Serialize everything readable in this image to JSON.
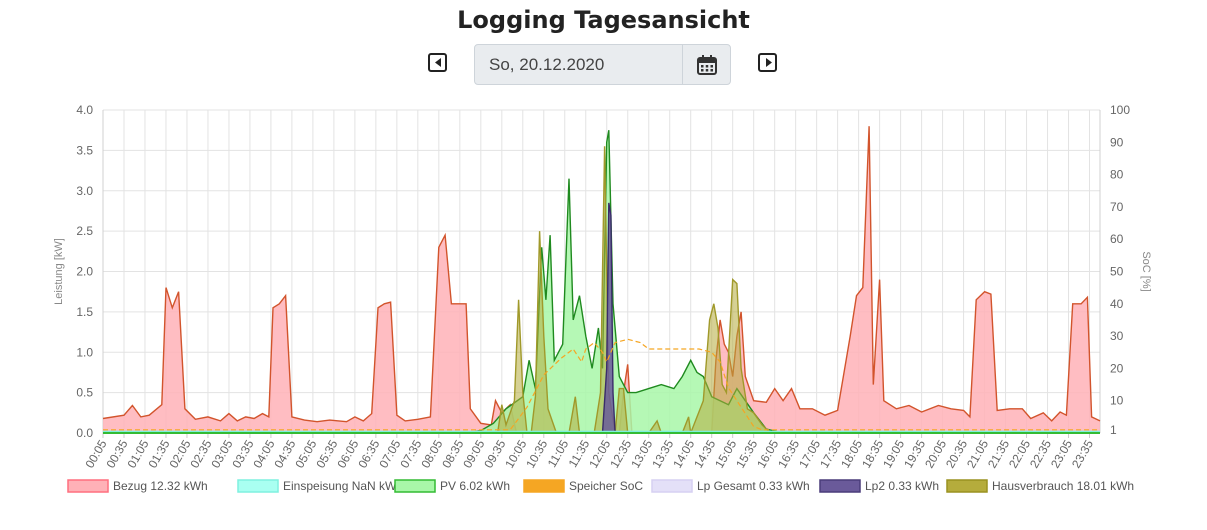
{
  "page": {
    "title": "Logging Tagesansicht",
    "date_value": "So, 20.12.2020"
  },
  "icons": {
    "prev": "caret-left-square-icon",
    "next": "caret-right-square-icon",
    "calendar": "calendar-icon"
  },
  "chart_data": {
    "type": "area",
    "x_ticks": [
      "00:05",
      "00:35",
      "01:05",
      "01:35",
      "02:05",
      "02:35",
      "03:05",
      "03:35",
      "04:05",
      "04:35",
      "05:05",
      "05:35",
      "06:05",
      "06:35",
      "07:05",
      "07:35",
      "08:05",
      "08:35",
      "09:05",
      "09:35",
      "10:05",
      "10:35",
      "11:05",
      "11:35",
      "12:05",
      "12:35",
      "13:05",
      "13:35",
      "14:05",
      "14:35",
      "15:05",
      "15:35",
      "16:05",
      "16:35",
      "17:05",
      "17:35",
      "18:05",
      "18:35",
      "19:05",
      "19:35",
      "20:05",
      "20:35",
      "21:05",
      "21:35",
      "22:05",
      "22:35",
      "23:05",
      "23:35"
    ],
    "y_left": {
      "label": "Leistung [kW]",
      "min": 0,
      "max": 4.0,
      "ticks": [
        "0.0",
        "0.5",
        "1.0",
        "1.5",
        "2.0",
        "2.5",
        "3.0",
        "3.5",
        "4.0"
      ]
    },
    "y_right": {
      "label": "SoC [%]",
      "min": 0,
      "max": 100,
      "ticks": [
        "1",
        "10",
        "20",
        "30",
        "40",
        "50",
        "60",
        "70",
        "80",
        "90",
        "100"
      ]
    },
    "grid": true,
    "legend_position": "bottom",
    "legend": [
      {
        "label": "Bezug 12.32 kWh",
        "fill": "#ffb1b7",
        "stroke": "#ff6f7f"
      },
      {
        "label": "Einspeisung NaN kWh",
        "fill": "#a9fff1",
        "stroke": "#7ff0df"
      },
      {
        "label": "PV 6.02 kWh",
        "fill": "#a8f7a8",
        "stroke": "#33bb33"
      },
      {
        "label": "Speicher SoC",
        "fill": "#f5a623",
        "stroke": "#f5a623"
      },
      {
        "label": "Lp Gesamt 0.33 kWh",
        "fill": "#e4e0f8",
        "stroke": "#d6d0f2"
      },
      {
        "label": "Lp2 0.33 kWh",
        "fill": "#6a5a9a",
        "stroke": "#4a3c7a"
      },
      {
        "label": "Hausverbrauch 18.01 kWh",
        "fill": "#b5ac3c",
        "stroke": "#9a9220"
      }
    ],
    "series": [
      {
        "name": "Bezug 12.32 kWh",
        "color": "#d2542c",
        "fill": "#ffb1b7",
        "points": [
          [
            0,
            0.18
          ],
          [
            0.5,
            0.22
          ],
          [
            0.7,
            0.34
          ],
          [
            0.9,
            0.2
          ],
          [
            1.1,
            0.22
          ],
          [
            1.4,
            0.35
          ],
          [
            1.5,
            1.8
          ],
          [
            1.65,
            1.55
          ],
          [
            1.8,
            1.75
          ],
          [
            1.95,
            0.3
          ],
          [
            2.2,
            0.17
          ],
          [
            2.5,
            0.2
          ],
          [
            2.8,
            0.15
          ],
          [
            3.0,
            0.24
          ],
          [
            3.2,
            0.15
          ],
          [
            3.4,
            0.2
          ],
          [
            3.6,
            0.18
          ],
          [
            3.8,
            0.24
          ],
          [
            3.95,
            0.2
          ],
          [
            4.05,
            1.55
          ],
          [
            4.2,
            1.6
          ],
          [
            4.35,
            1.7
          ],
          [
            4.5,
            0.2
          ],
          [
            4.8,
            0.16
          ],
          [
            5.1,
            0.14
          ],
          [
            5.4,
            0.16
          ],
          [
            5.8,
            0.14
          ],
          [
            6.0,
            0.2
          ],
          [
            6.2,
            0.15
          ],
          [
            6.4,
            0.24
          ],
          [
            6.55,
            1.55
          ],
          [
            6.7,
            1.6
          ],
          [
            6.85,
            1.62
          ],
          [
            7.0,
            0.22
          ],
          [
            7.2,
            0.15
          ],
          [
            7.5,
            0.17
          ],
          [
            7.8,
            0.2
          ],
          [
            8.0,
            2.3
          ],
          [
            8.15,
            2.45
          ],
          [
            8.3,
            1.6
          ],
          [
            8.5,
            1.6
          ],
          [
            8.65,
            1.6
          ],
          [
            8.75,
            0.3
          ],
          [
            9.0,
            0.12
          ],
          [
            9.25,
            0.1
          ],
          [
            9.35,
            0.4
          ],
          [
            9.5,
            0.25
          ],
          [
            9.7,
            0.35
          ],
          [
            9.85,
            0.0
          ],
          [
            10.3,
            0.0
          ],
          [
            12.3,
            0.0
          ],
          [
            12.4,
            0.5
          ],
          [
            12.5,
            0.85
          ],
          [
            12.6,
            0.0
          ],
          [
            14.5,
            0.0
          ],
          [
            14.6,
            0.9
          ],
          [
            14.7,
            1.4
          ],
          [
            14.8,
            1.1
          ],
          [
            14.9,
            1.0
          ],
          [
            15.0,
            0.7
          ],
          [
            15.1,
            1.2
          ],
          [
            15.2,
            1.5
          ],
          [
            15.3,
            0.7
          ],
          [
            15.5,
            0.4
          ],
          [
            15.8,
            0.38
          ],
          [
            16.0,
            0.55
          ],
          [
            16.2,
            0.4
          ],
          [
            16.4,
            0.55
          ],
          [
            16.6,
            0.3
          ],
          [
            16.9,
            0.3
          ],
          [
            17.2,
            0.22
          ],
          [
            17.5,
            0.28
          ],
          [
            17.8,
            1.2
          ],
          [
            17.95,
            1.7
          ],
          [
            18.1,
            1.8
          ],
          [
            18.25,
            3.8
          ],
          [
            18.35,
            0.6
          ],
          [
            18.5,
            1.9
          ],
          [
            18.6,
            0.4
          ],
          [
            18.9,
            0.3
          ],
          [
            19.2,
            0.34
          ],
          [
            19.5,
            0.26
          ],
          [
            19.9,
            0.34
          ],
          [
            20.2,
            0.3
          ],
          [
            20.5,
            0.28
          ],
          [
            20.65,
            0.2
          ],
          [
            20.8,
            1.65
          ],
          [
            21.0,
            1.75
          ],
          [
            21.15,
            1.72
          ],
          [
            21.3,
            0.28
          ],
          [
            21.6,
            0.3
          ],
          [
            21.9,
            0.3
          ],
          [
            22.1,
            0.18
          ],
          [
            22.4,
            0.25
          ],
          [
            22.6,
            0.15
          ],
          [
            22.8,
            0.26
          ],
          [
            22.95,
            0.22
          ],
          [
            23.1,
            1.6
          ],
          [
            23.3,
            1.6
          ],
          [
            23.45,
            1.68
          ],
          [
            23.55,
            0.2
          ],
          [
            23.75,
            0.15
          ]
        ]
      },
      {
        "name": "PV 6.02 kWh",
        "color": "#1f8a1f",
        "fill": "#a8f7a8",
        "points": [
          [
            0,
            0
          ],
          [
            8.7,
            0
          ],
          [
            9.0,
            0.03
          ],
          [
            9.3,
            0.12
          ],
          [
            9.6,
            0.3
          ],
          [
            10.0,
            0.45
          ],
          [
            10.15,
            0.9
          ],
          [
            10.3,
            0.55
          ],
          [
            10.45,
            2.3
          ],
          [
            10.55,
            1.65
          ],
          [
            10.65,
            2.45
          ],
          [
            10.75,
            0.9
          ],
          [
            10.85,
            1.0
          ],
          [
            10.95,
            1.1
          ],
          [
            11.1,
            3.15
          ],
          [
            11.2,
            1.4
          ],
          [
            11.35,
            1.7
          ],
          [
            11.5,
            1.2
          ],
          [
            11.65,
            0.8
          ],
          [
            11.8,
            1.3
          ],
          [
            11.9,
            0.8
          ],
          [
            12.0,
            3.6
          ],
          [
            12.05,
            3.75
          ],
          [
            12.15,
            1.6
          ],
          [
            12.3,
            0.7
          ],
          [
            12.5,
            0.5
          ],
          [
            12.7,
            0.5
          ],
          [
            13.0,
            0.55
          ],
          [
            13.3,
            0.6
          ],
          [
            13.6,
            0.55
          ],
          [
            13.8,
            0.7
          ],
          [
            14.0,
            0.9
          ],
          [
            14.15,
            0.75
          ],
          [
            14.3,
            0.7
          ],
          [
            14.5,
            0.45
          ],
          [
            14.7,
            0.4
          ],
          [
            14.9,
            0.35
          ],
          [
            15.1,
            0.55
          ],
          [
            15.3,
            0.4
          ],
          [
            15.5,
            0.25
          ],
          [
            15.8,
            0.05
          ],
          [
            16.2,
            0.0
          ],
          [
            23.75,
            0
          ]
        ]
      },
      {
        "name": "Hausverbrauch 18.01 kWh",
        "color": "#a0992a",
        "fill": "#b5ac3c",
        "points": [
          [
            0,
            0
          ],
          [
            9.4,
            0
          ],
          [
            9.5,
            0.35
          ],
          [
            9.6,
            0.1
          ],
          [
            9.8,
            0.4
          ],
          [
            9.9,
            1.65
          ],
          [
            10.0,
            0.5
          ],
          [
            10.1,
            0.0
          ],
          [
            10.2,
            0.0
          ],
          [
            10.3,
            0.45
          ],
          [
            10.4,
            2.5
          ],
          [
            10.5,
            1.2
          ],
          [
            10.6,
            0.3
          ],
          [
            10.8,
            0.0
          ],
          [
            11.1,
            0.0
          ],
          [
            11.25,
            0.45
          ],
          [
            11.35,
            0.0
          ],
          [
            11.7,
            0.0
          ],
          [
            11.85,
            0.5
          ],
          [
            11.95,
            3.55
          ],
          [
            12.05,
            0.5
          ],
          [
            12.2,
            0.0
          ],
          [
            12.3,
            0.55
          ],
          [
            12.4,
            0.55
          ],
          [
            12.5,
            0.0
          ],
          [
            13.0,
            0.0
          ],
          [
            13.2,
            0.15
          ],
          [
            13.3,
            0.0
          ],
          [
            13.8,
            0.0
          ],
          [
            13.95,
            0.2
          ],
          [
            14.0,
            0.0
          ],
          [
            14.3,
            0.4
          ],
          [
            14.45,
            1.4
          ],
          [
            14.55,
            1.6
          ],
          [
            14.65,
            1.3
          ],
          [
            14.75,
            0.6
          ],
          [
            14.85,
            0.5
          ],
          [
            15.0,
            1.9
          ],
          [
            15.1,
            1.85
          ],
          [
            15.2,
            0.8
          ],
          [
            15.35,
            0.3
          ],
          [
            15.5,
            0.25
          ],
          [
            15.7,
            0.1
          ],
          [
            15.9,
            0.0
          ],
          [
            23.75,
            0
          ]
        ]
      },
      {
        "name": "Lp2 0.33 kWh",
        "color": "#3a2c6a",
        "fill": "#6a5a9a",
        "points": [
          [
            0,
            0
          ],
          [
            11.9,
            0
          ],
          [
            12.0,
            0.8
          ],
          [
            12.05,
            2.85
          ],
          [
            12.1,
            2.7
          ],
          [
            12.15,
            0.5
          ],
          [
            12.2,
            0.0
          ],
          [
            23.75,
            0
          ]
        ]
      },
      {
        "name": "Speicher SoC",
        "color": "#f5a623",
        "dashed": true,
        "axis": "right",
        "points": [
          [
            0,
            1
          ],
          [
            9.7,
            1
          ],
          [
            10.1,
            8
          ],
          [
            10.5,
            18
          ],
          [
            10.9,
            23
          ],
          [
            11.2,
            26
          ],
          [
            11.4,
            22
          ],
          [
            11.5,
            26
          ],
          [
            11.7,
            28
          ],
          [
            11.9,
            25
          ],
          [
            12.0,
            22
          ],
          [
            12.2,
            28
          ],
          [
            12.5,
            29
          ],
          [
            12.8,
            28
          ],
          [
            13.0,
            26
          ],
          [
            13.4,
            26
          ],
          [
            13.8,
            26
          ],
          [
            14.2,
            26
          ],
          [
            14.5,
            25
          ],
          [
            14.7,
            22
          ],
          [
            14.9,
            14
          ],
          [
            15.1,
            10
          ],
          [
            15.3,
            6
          ],
          [
            15.5,
            2
          ],
          [
            15.7,
            1
          ],
          [
            23.75,
            1
          ]
        ]
      },
      {
        "name": "Einspeisung NaN kWh",
        "color": "#7ff0df",
        "points": [
          [
            0,
            0.02
          ],
          [
            23.75,
            0.02
          ]
        ]
      }
    ]
  }
}
